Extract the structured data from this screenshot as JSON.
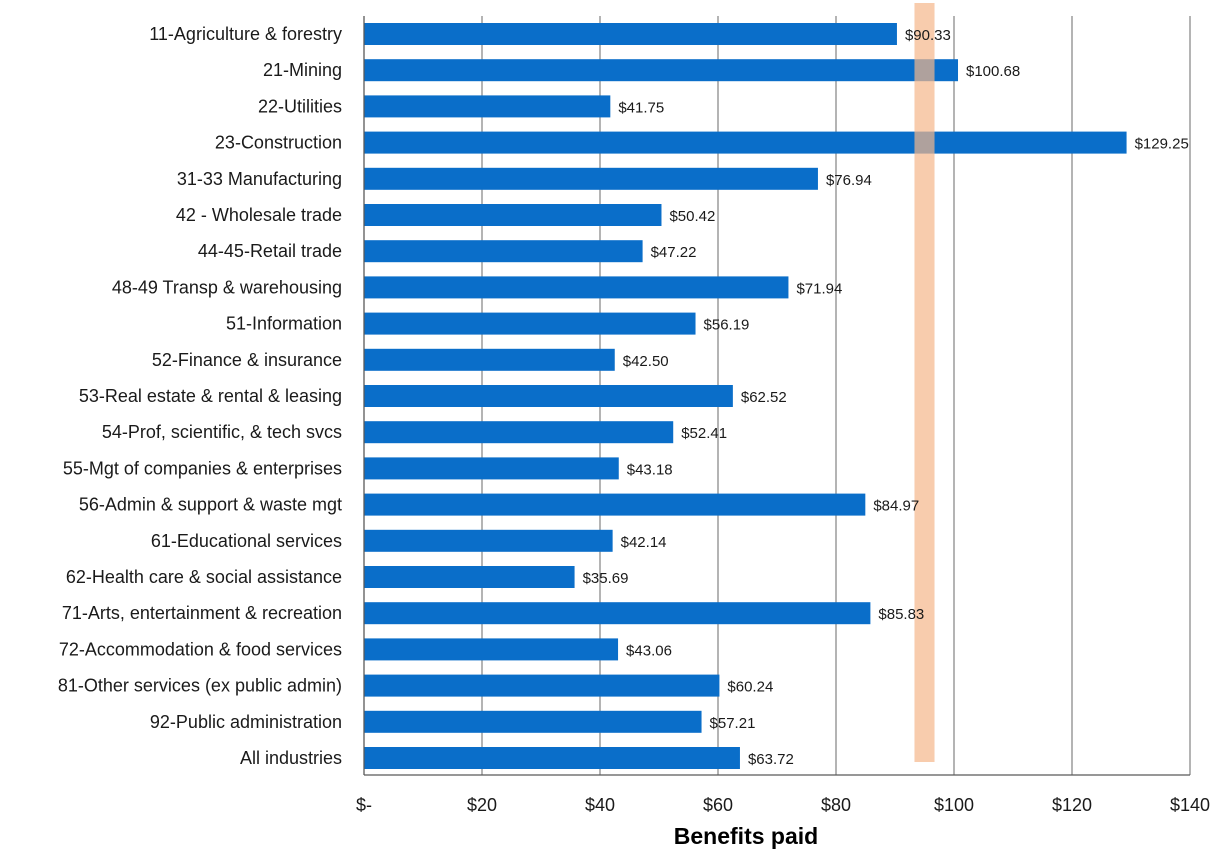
{
  "chart_data": {
    "type": "bar",
    "orientation": "horizontal",
    "categories": [
      "11-Agriculture & forestry",
      "21-Mining",
      "22-Utilities",
      "23-Construction",
      "31-33 Manufacturing",
      "42 - Wholesale trade",
      "44-45-Retail trade",
      "48-49 Transp & warehousing",
      "51-Information",
      "52-Finance & insurance",
      "53-Real estate & rental & leasing",
      "54-Prof, scientific, & tech svcs",
      "55-Mgt of companies & enterprises",
      "56-Admin & support & waste mgt",
      "61-Educational services",
      "62-Health care & social assistance",
      "71-Arts, entertainment & recreation",
      "72-Accommodation & food services",
      "81-Other services (ex public admin)",
      "92-Public administration",
      "All industries"
    ],
    "values": [
      90.33,
      100.68,
      41.75,
      129.25,
      76.94,
      50.42,
      47.22,
      71.94,
      56.19,
      42.5,
      62.52,
      52.41,
      43.18,
      84.97,
      42.14,
      35.69,
      85.83,
      43.06,
      60.24,
      57.21,
      63.72
    ],
    "value_labels": [
      "$90.33",
      "$100.68",
      "$41.75",
      "$129.25",
      "$76.94",
      "$50.42",
      "$47.22",
      "$71.94",
      "$56.19",
      "$42.50",
      "$62.52",
      "$52.41",
      "$43.18",
      "$84.97",
      "$42.14",
      "$35.69",
      "$85.83",
      "$43.06",
      "$60.24",
      "$57.21",
      "$63.72"
    ],
    "xlim": [
      0,
      140
    ],
    "x_ticks": [
      0,
      20,
      40,
      60,
      80,
      100,
      120,
      140
    ],
    "x_tick_labels": [
      "$-",
      "$20",
      "$40",
      "$60",
      "$80",
      "$100",
      "$120",
      "$140"
    ],
    "xlabel": "Benefits paid",
    "title": "",
    "grid": "vertical",
    "highlight_band": {
      "from": 93.3,
      "to": 96.7
    },
    "colors": {
      "bar": "#0a6ec9",
      "band": "#f5b68a",
      "grid": "#8c8c8c",
      "axis": "#595959"
    }
  }
}
